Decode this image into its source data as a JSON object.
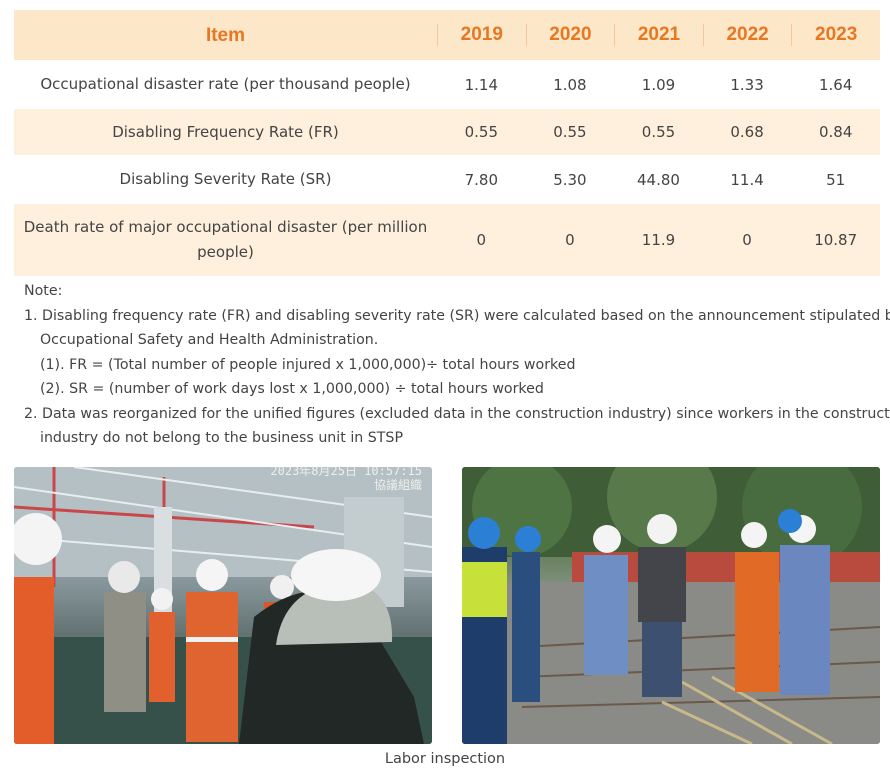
{
  "table": {
    "headers": [
      "Item",
      "2019",
      "2020",
      "2021",
      "2022",
      "2023"
    ],
    "rows": [
      {
        "label": "Occupational disaster rate (per thousand people)",
        "values": [
          "1.14",
          "1.08",
          "1.09",
          "1.33",
          "1.64"
        ]
      },
      {
        "label": "Disabling Frequency Rate (FR)",
        "values": [
          "0.55",
          "0.55",
          "0.55",
          "0.68",
          "0.84"
        ]
      },
      {
        "label": "Disabling Severity Rate (SR)",
        "values": [
          "7.80",
          "5.30",
          "44.80",
          "11.4",
          "51"
        ]
      },
      {
        "label": "Death rate of major occupational disaster (per million people)",
        "values": [
          "0",
          "0",
          "11.9",
          "0",
          "10.87"
        ]
      }
    ]
  },
  "notes": {
    "title": "Note:",
    "line1a": "1. Disabling frequency rate (FR) and disabling severity rate (SR) were calculated based on the announcement stipulated by",
    "line1b": "Occupational Safety and Health Administration.",
    "line1c": "(1). FR = (Total number of people injured x 1,000,000)÷ total hours worked",
    "line1d": "(2). SR = (number of work days lost x 1,000,000) ÷ total hours worked",
    "line2a": "2. Data was reorganized for the unified figures (excluded data in the construction industry) since workers in the construction",
    "line2b": "industry do not belong to the business unit in STSP"
  },
  "photos": {
    "stamp_date": "2023年8月25日 10:57:15",
    "stamp_org": "協議組織"
  },
  "caption": "Labor inspection"
}
